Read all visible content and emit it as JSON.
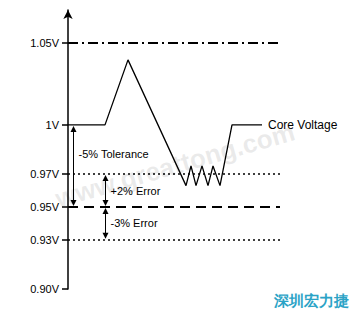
{
  "chart_data": {
    "type": "line",
    "x": [
      0,
      37,
      60,
      118,
      123,
      128,
      134,
      140,
      145,
      152,
      164,
      194
    ],
    "series": [
      {
        "name": "Core Voltage",
        "color": "#000000",
        "values": [
          1.0,
          1.0,
          1.0396,
          0.963,
          0.975,
          0.963,
          0.975,
          0.963,
          0.975,
          0.963,
          1.0,
          1.0
        ]
      }
    ],
    "xlim": [
      0,
      212
    ],
    "ylim": [
      0.9,
      1.07
    ],
    "yticks": [
      {
        "value": 0.9,
        "label": "0.90V"
      },
      {
        "value": 0.93,
        "label": "0.93V"
      },
      {
        "value": 0.95,
        "label": "0.95V"
      },
      {
        "value": 0.97,
        "label": "0.97V"
      },
      {
        "value": 1.0,
        "label": "1V"
      },
      {
        "value": 1.05,
        "label": "1.05V"
      }
    ],
    "tick_labels": "y",
    "grid": false,
    "reference_lines": [
      {
        "value": 1.05,
        "line_style": "dashdot"
      },
      {
        "value": 0.97,
        "line_style": "dotted"
      },
      {
        "value": 0.95,
        "line_style": "dashed"
      },
      {
        "value": 0.93,
        "line_style": "dotted"
      }
    ],
    "annotations": [
      {
        "text": "-5% Tolerance",
        "from": 1.0,
        "to": 0.95
      },
      {
        "text": "+2% Error",
        "from": 0.97,
        "to": 0.95
      },
      {
        "text": "-3% Error",
        "from": 0.95,
        "to": 0.93
      }
    ],
    "watermark": "www.greattong.com",
    "logo": "深圳宏力捷"
  }
}
